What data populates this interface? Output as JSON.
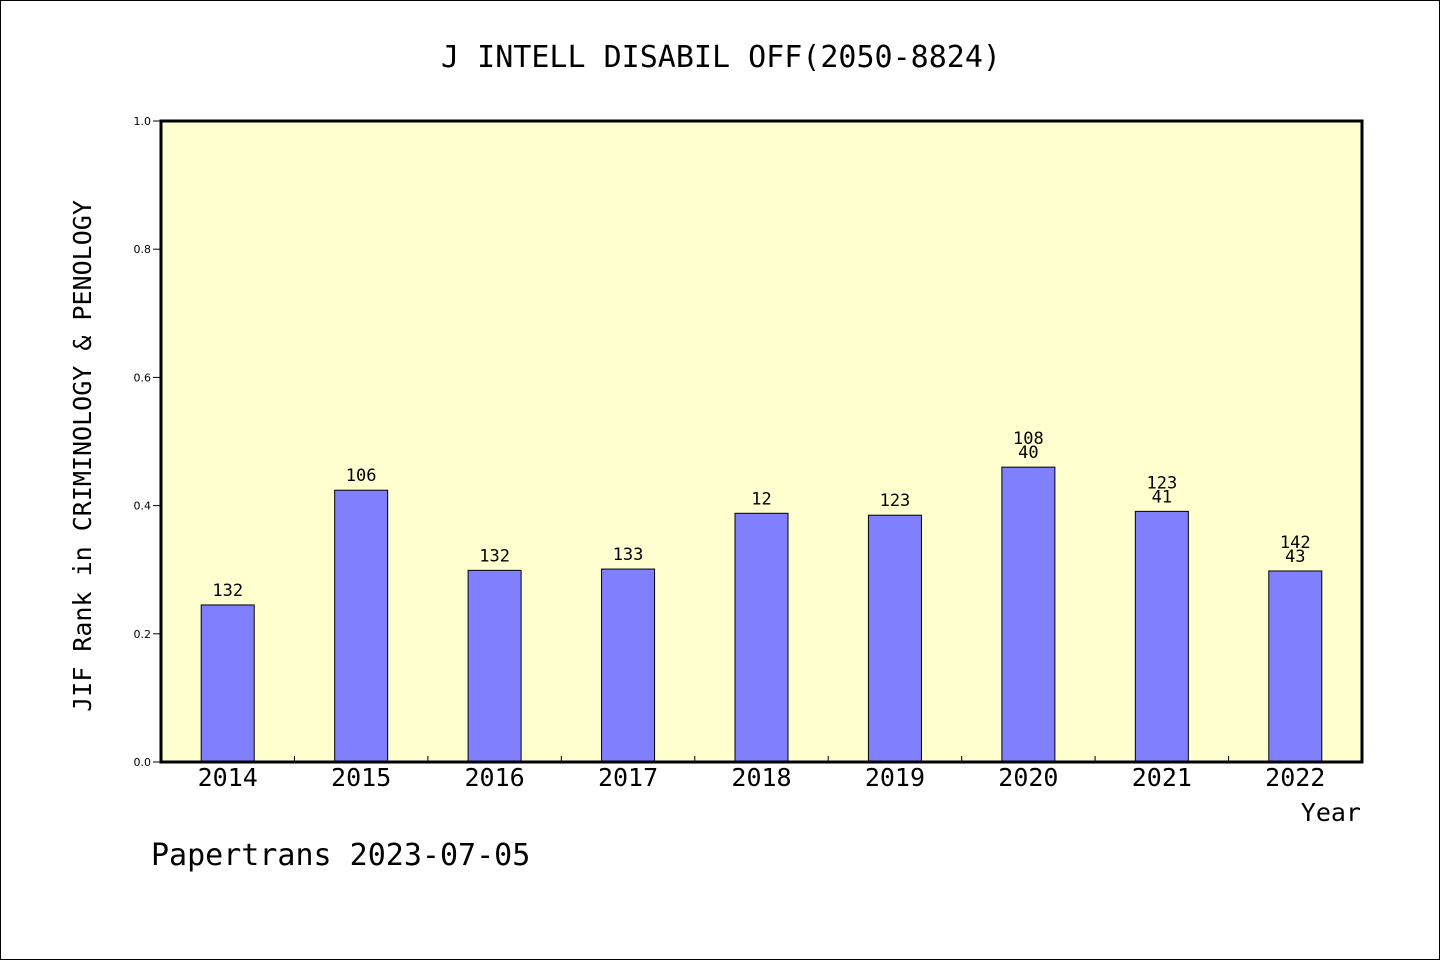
{
  "chart_data": {
    "type": "bar",
    "title": "J INTELL DISABIL OFF(2050-8824)",
    "xlabel": "Year",
    "ylabel": "JIF Rank in CRIMINOLOGY & PENOLOGY",
    "ylim": [
      0,
      1.0
    ],
    "yticks": [
      "0.0",
      "0.2",
      "0.4",
      "0.6",
      "0.8",
      "1.0"
    ],
    "ytick_values": [
      0,
      0.2,
      0.4,
      0.6,
      0.8,
      1.0
    ],
    "grid": false,
    "categories": [
      "2014",
      "2015",
      "2016",
      "2017",
      "2018",
      "2019",
      "2020",
      "2021",
      "2022"
    ],
    "values": [
      0.245,
      0.424,
      0.299,
      0.301,
      0.388,
      0.385,
      0.46,
      0.391,
      0.298
    ],
    "bar_labels": [
      [
        "132"
      ],
      [
        "106"
      ],
      [
        "132"
      ],
      [
        "133"
      ],
      [
        "12"
      ],
      [
        "123"
      ],
      [
        "108",
        "40"
      ],
      [
        "123",
        "41"
      ],
      [
        "142",
        "43"
      ]
    ],
    "colors": {
      "bar_fill": "#8080ff",
      "plot_background": "#ffffd0",
      "axis": "#000000"
    }
  },
  "footer": {
    "credit": "Papertrans 2023-07-05"
  }
}
